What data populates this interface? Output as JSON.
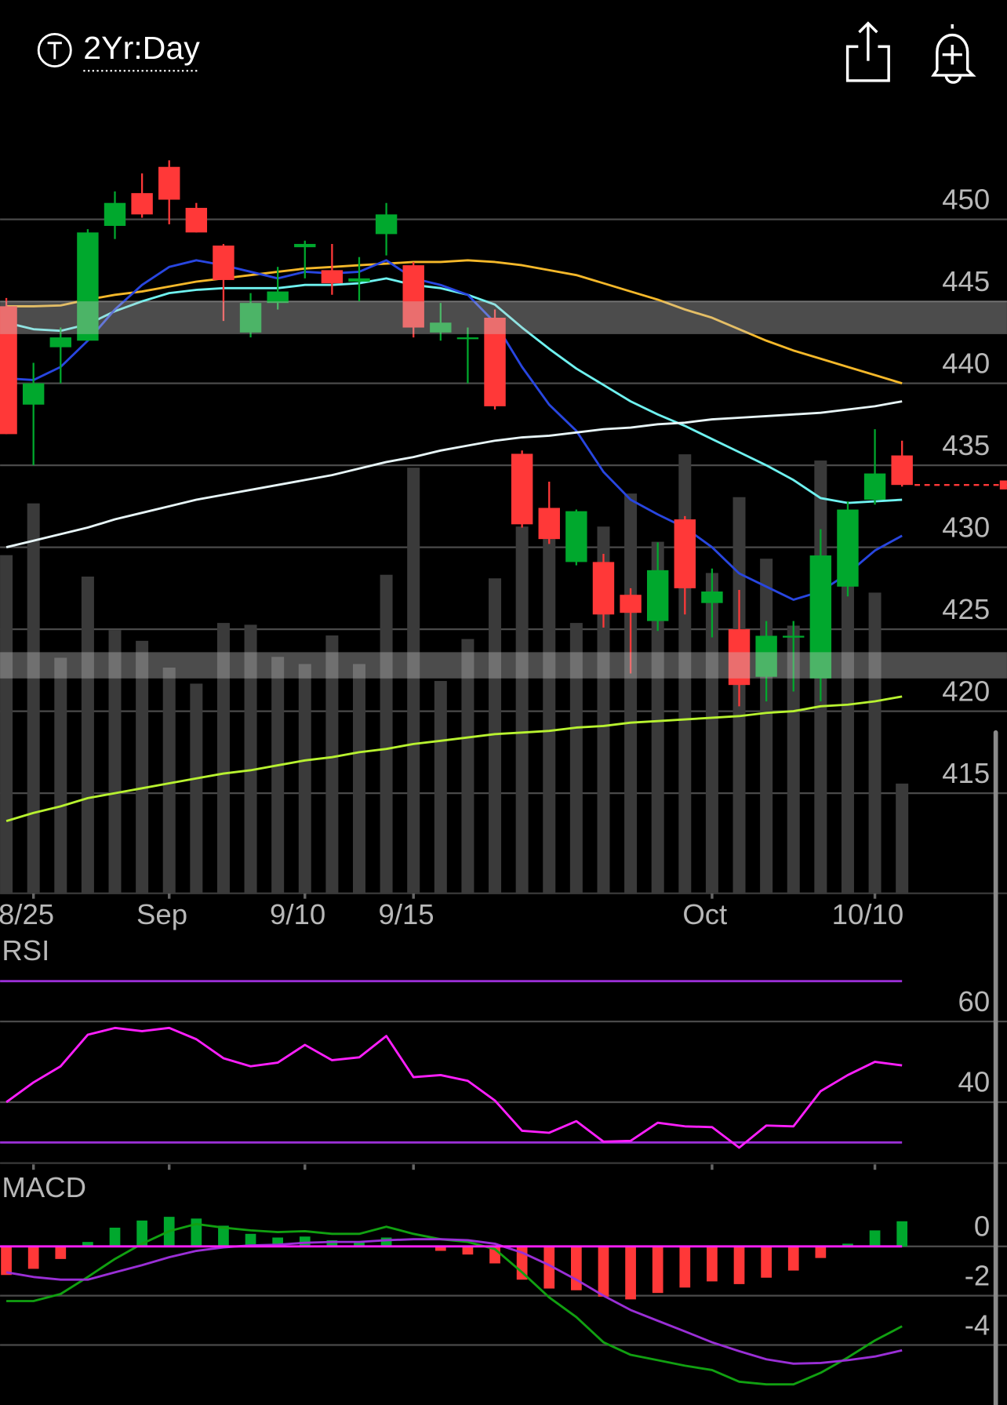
{
  "header": {
    "timeframe": "2Yr:Day"
  },
  "chart_data": [
    {
      "type": "candlestick",
      "categories": [
        null,
        "8/25",
        null,
        null,
        null,
        null,
        "Sep",
        null,
        null,
        null,
        null,
        "9/10",
        null,
        null,
        null,
        "9/15",
        null,
        null,
        null,
        null,
        null,
        null,
        null,
        null,
        null,
        null,
        "Oct",
        null,
        null,
        null,
        null,
        null,
        "10/10",
        null
      ],
      "open": [
        444.7,
        438.7,
        442.2,
        442.6,
        449.6,
        451.6,
        453.2,
        450.7,
        448.4,
        443.1,
        444.9,
        448.3,
        446.9,
        446.2,
        449.1,
        447.2,
        443.1,
        442.7,
        444.0,
        435.7,
        432.4,
        429.1,
        429.1,
        427.1,
        425.5,
        431.7,
        426.6,
        425.0,
        422.1,
        424.5,
        422.0,
        427.6,
        432.9,
        435.6
      ],
      "high": [
        445.2,
        441.25,
        443.4,
        449.4,
        451.7,
        452.8,
        453.6,
        451.0,
        448.5,
        445.5,
        447.1,
        448.7,
        448.5,
        447.7,
        451.0,
        447.4,
        444.9,
        443.4,
        444.5,
        435.9,
        434.0,
        432.3,
        429.6,
        427.5,
        430.3,
        431.9,
        428.7,
        427.4,
        425.5,
        425.5,
        431.1,
        432.8,
        437.2,
        436.5
      ],
      "low": [
        436.9,
        435.0,
        440.0,
        442.6,
        448.8,
        450.1,
        449.7,
        449.2,
        443.8,
        442.8,
        444.5,
        446.4,
        445.4,
        445.0,
        447.8,
        442.8,
        442.6,
        440.0,
        438.4,
        431.2,
        430.2,
        428.9,
        425.1,
        422.3,
        424.9,
        425.9,
        424.5,
        420.3,
        420.6,
        421.2,
        420.6,
        427.0,
        432.6,
        433.7
      ],
      "close": [
        436.9,
        440.0,
        442.8,
        449.2,
        451.0,
        450.3,
        451.2,
        449.2,
        446.3,
        444.9,
        445.6,
        448.5,
        446.1,
        446.4,
        450.3,
        443.4,
        443.7,
        442.8,
        438.6,
        431.4,
        430.5,
        432.2,
        425.9,
        426.0,
        428.6,
        427.5,
        427.3,
        421.6,
        424.6,
        424.6,
        429.5,
        432.3,
        434.5,
        433.8
      ],
      "up_color": "#00a82d",
      "down_color": "#ff3838",
      "volume": [
        379,
        437,
        264,
        355,
        295,
        283,
        253,
        235,
        303,
        301,
        265,
        257,
        289,
        257,
        357,
        477,
        238,
        285,
        353,
        411,
        397,
        303,
        411,
        448,
        394,
        492,
        359,
        444,
        375,
        300,
        485,
        347,
        337,
        123
      ],
      "volume_color": "#3a3a3a",
      "series": [
        {
          "color": "#f5b82a",
          "values": [
            444.7,
            444.7,
            444.75,
            445.1,
            445.4,
            445.6,
            445.9,
            446.2,
            446.4,
            446.6,
            446.8,
            447.0,
            447.1,
            447.2,
            447.3,
            447.4,
            447.4,
            447.5,
            447.4,
            447.2,
            446.9,
            446.6,
            446.1,
            445.6,
            445.1,
            444.5,
            444.0,
            443.3,
            442.6,
            442.0,
            441.5,
            441.0,
            440.5,
            440.0
          ]
        },
        {
          "color": "#6ff2f0",
          "values": [
            443.7,
            443.3,
            443.2,
            443.6,
            444.4,
            445.0,
            445.5,
            445.7,
            445.8,
            445.8,
            445.8,
            446.0,
            446.0,
            446.1,
            446.4,
            446.0,
            445.8,
            445.4,
            444.8,
            443.4,
            442.1,
            440.9,
            439.9,
            438.9,
            438.1,
            437.4,
            436.6,
            435.8,
            435.0,
            434.1,
            433.0,
            432.7,
            432.8,
            432.9
          ]
        },
        {
          "color": "#2846e0",
          "values": [
            440.3,
            440.2,
            441.0,
            442.6,
            444.5,
            446.0,
            447.1,
            447.5,
            447.2,
            446.8,
            446.4,
            446.8,
            446.7,
            446.8,
            447.5,
            446.4,
            446.0,
            445.4,
            443.7,
            441.0,
            438.7,
            437.1,
            434.6,
            432.9,
            432.0,
            431.2,
            430.0,
            428.4,
            427.6,
            426.8,
            427.3,
            428.4,
            429.8,
            430.7
          ]
        },
        {
          "color": "#e8f6f8",
          "values": [
            430.0,
            430.4,
            430.8,
            431.2,
            431.7,
            432.1,
            432.5,
            432.9,
            433.2,
            433.5,
            433.8,
            434.1,
            434.4,
            434.8,
            435.2,
            435.5,
            435.9,
            436.2,
            436.5,
            436.7,
            436.8,
            437.0,
            437.2,
            437.3,
            437.5,
            437.6,
            437.8,
            437.9,
            438.0,
            438.1,
            438.2,
            438.4,
            438.6,
            438.9
          ]
        },
        {
          "color": "#b8f230",
          "values": [
            413.3,
            413.8,
            414.2,
            414.7,
            415.0,
            415.3,
            415.6,
            415.9,
            416.2,
            416.4,
            416.7,
            417.0,
            417.2,
            417.5,
            417.7,
            418.0,
            418.2,
            418.4,
            418.6,
            418.7,
            418.8,
            419.0,
            419.1,
            419.3,
            419.4,
            419.5,
            419.6,
            419.7,
            419.9,
            420.0,
            420.3,
            420.4,
            420.6,
            420.9
          ]
        }
      ],
      "bands": [
        [
          443.0,
          445.0
        ],
        [
          422.0,
          423.6
        ]
      ],
      "band_color": "rgba(200,200,200,0.38)",
      "ylim": [
        409,
        456
      ],
      "yticks": [
        415,
        420,
        425,
        430,
        435,
        440,
        445,
        450
      ],
      "grid": true
    },
    {
      "type": "line",
      "title": "RSI",
      "series": [
        {
          "color": "#ff1fff",
          "values": [
            40,
            44.9,
            48.9,
            56.7,
            58.4,
            57.6,
            58.4,
            55.6,
            50.9,
            48.9,
            49.8,
            54.2,
            50.4,
            51.1,
            56.4,
            46.2,
            46.7,
            45.3,
            40.4,
            32.9,
            32.4,
            35.3,
            30.2,
            30.4,
            34.9,
            34.0,
            33.8,
            28.7,
            34.2,
            34.0,
            42.7,
            46.7,
            50.0,
            49.1
          ]
        }
      ],
      "levels": [
        70,
        30
      ],
      "level_color": "#9a2fd6",
      "ylim": [
        25,
        74
      ],
      "yticks": [
        40,
        60
      ],
      "grid": true
    },
    {
      "type": "bar",
      "title": "MACD",
      "values": [
        -1.16,
        -0.91,
        -0.51,
        0.18,
        0.76,
        1.05,
        1.2,
        1.13,
        0.84,
        0.51,
        0.36,
        0.4,
        0.25,
        0.18,
        0.36,
        0.04,
        -0.18,
        -0.33,
        -0.69,
        -1.35,
        -1.71,
        -1.78,
        -2.04,
        -2.15,
        -1.89,
        -1.67,
        -1.42,
        -1.53,
        -1.27,
        -0.98,
        -0.47,
        0.11,
        0.65,
        1.02
      ],
      "up_color": "#00a82d",
      "down_color": "#ff3838",
      "series": [
        {
          "color": "#11a011",
          "values": [
            -2.22,
            -2.22,
            -1.93,
            -1.24,
            -0.51,
            0.11,
            0.62,
            0.91,
            0.76,
            0.65,
            0.58,
            0.62,
            0.51,
            0.51,
            0.8,
            0.51,
            0.29,
            0.18,
            -0.11,
            -1.05,
            -2.07,
            -2.87,
            -3.89,
            -4.4,
            -4.62,
            -4.84,
            -5.02,
            -5.49,
            -5.6,
            -5.6,
            -5.13,
            -4.51,
            -3.82,
            -3.24
          ]
        },
        {
          "color": "#9a2fd6",
          "values": [
            -1.05,
            -1.24,
            -1.35,
            -1.35,
            -1.05,
            -0.76,
            -0.44,
            -0.18,
            -0.04,
            0.04,
            0.07,
            0.15,
            0.18,
            0.18,
            0.25,
            0.29,
            0.29,
            0.25,
            0.11,
            -0.25,
            -0.76,
            -1.35,
            -2.0,
            -2.58,
            -3.02,
            -3.45,
            -3.89,
            -4.25,
            -4.58,
            -4.76,
            -4.73,
            -4.62,
            -4.47,
            -4.22
          ]
        }
      ],
      "zero_line_color": "#ff1fff",
      "ylim": [
        -6.4,
        1.8
      ],
      "yticks": [
        -4,
        -2,
        0
      ],
      "grid": true
    }
  ]
}
